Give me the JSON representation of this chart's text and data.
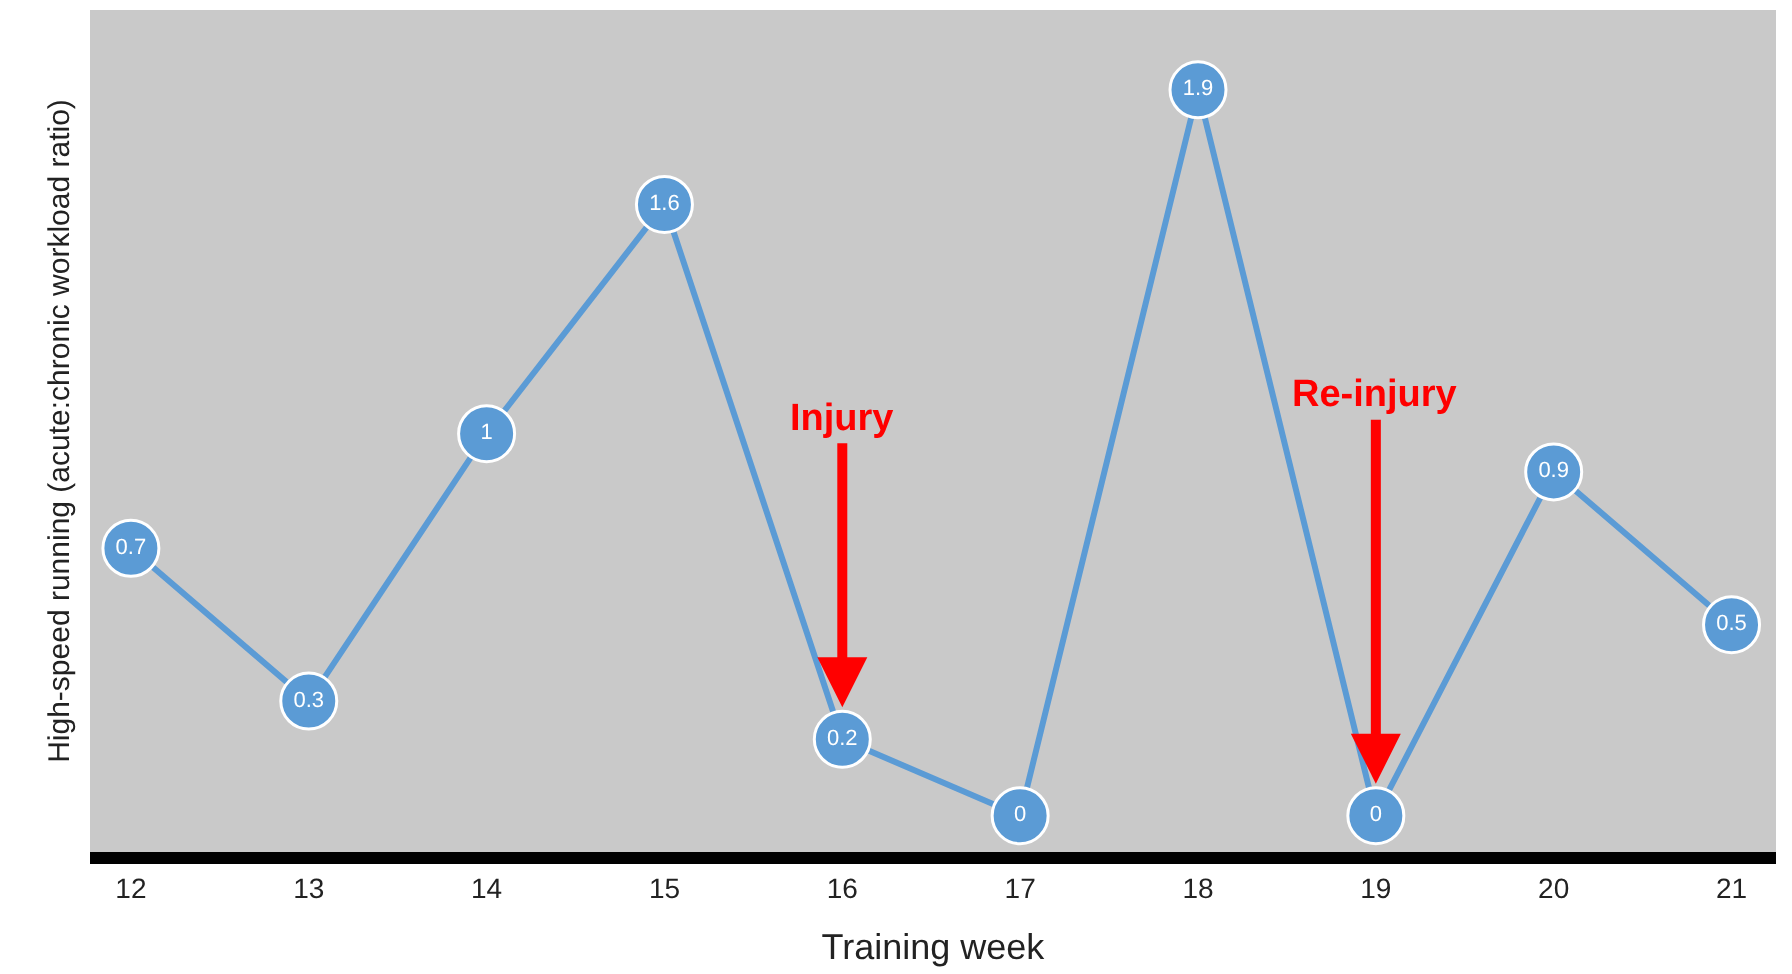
{
  "chart_data": {
    "type": "line",
    "xlabel": "Training week",
    "ylabel": "High-speed running (acute:chronic workload ratio)",
    "x": [
      12,
      13,
      14,
      15,
      16,
      17,
      18,
      19,
      20,
      21
    ],
    "series": [
      {
        "color": "#5b9bd5",
        "values": [
          0.7,
          0.3,
          1,
          1.6,
          0.2,
          0,
          1.9,
          0,
          0.9,
          0.5
        ]
      }
    ],
    "xlim": [
      11.77,
      21.25
    ],
    "xticks": [
      12,
      13,
      14,
      15,
      16,
      17,
      18,
      19,
      20,
      21
    ],
    "data_labels": true,
    "marker": "circle",
    "line_style": "solid",
    "grid": false,
    "legend": false,
    "annotations": [
      {
        "text": "Injury",
        "x": 16,
        "y": 0.2
      },
      {
        "text": "Re-injury",
        "x": 19,
        "y": 0
      }
    ]
  }
}
